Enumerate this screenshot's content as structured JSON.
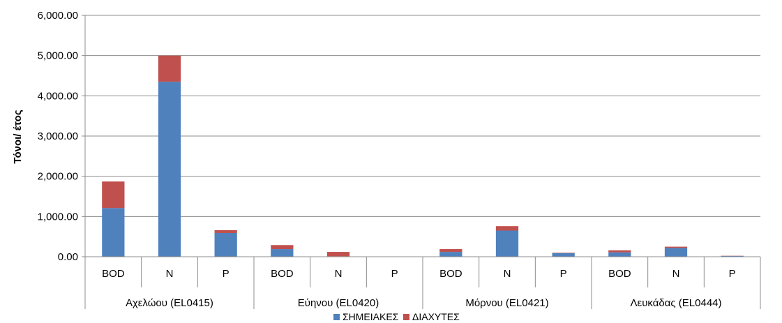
{
  "chart_data": {
    "type": "bar",
    "stacked": true,
    "ylabel": "Τόνοι/ έτος",
    "ylim": [
      0,
      6000
    ],
    "yticks": [
      "0.00",
      "1,000.00",
      "2,000.00",
      "3,000.00",
      "4,000.00",
      "5,000.00",
      "6,000.00"
    ],
    "ytick_values": [
      0,
      1000,
      2000,
      3000,
      4000,
      5000,
      6000
    ],
    "groups": [
      "Αχελώου (EL0415)",
      "Εύηνου (EL0420)",
      "Μόρνου (EL0421)",
      "Λευκάδας (EL0444)"
    ],
    "categories": [
      "BOD",
      "N",
      "P",
      "BOD",
      "N",
      "P",
      "BOD",
      "N",
      "P",
      "BOD",
      "N",
      "P"
    ],
    "series": [
      {
        "name": "ΣΗΜΕΙΑΚΕΣ",
        "color": "#4F81BD",
        "values": [
          1210,
          4350,
          590,
          190,
          10,
          0,
          120,
          650,
          90,
          110,
          220,
          20
        ]
      },
      {
        "name": "ΔΙΑΧΥΤΕΣ",
        "color": "#C0504D",
        "values": [
          660,
          650,
          70,
          100,
          110,
          0,
          70,
          110,
          10,
          50,
          30,
          5
        ]
      }
    ],
    "grid": true,
    "legend": "bottom"
  }
}
